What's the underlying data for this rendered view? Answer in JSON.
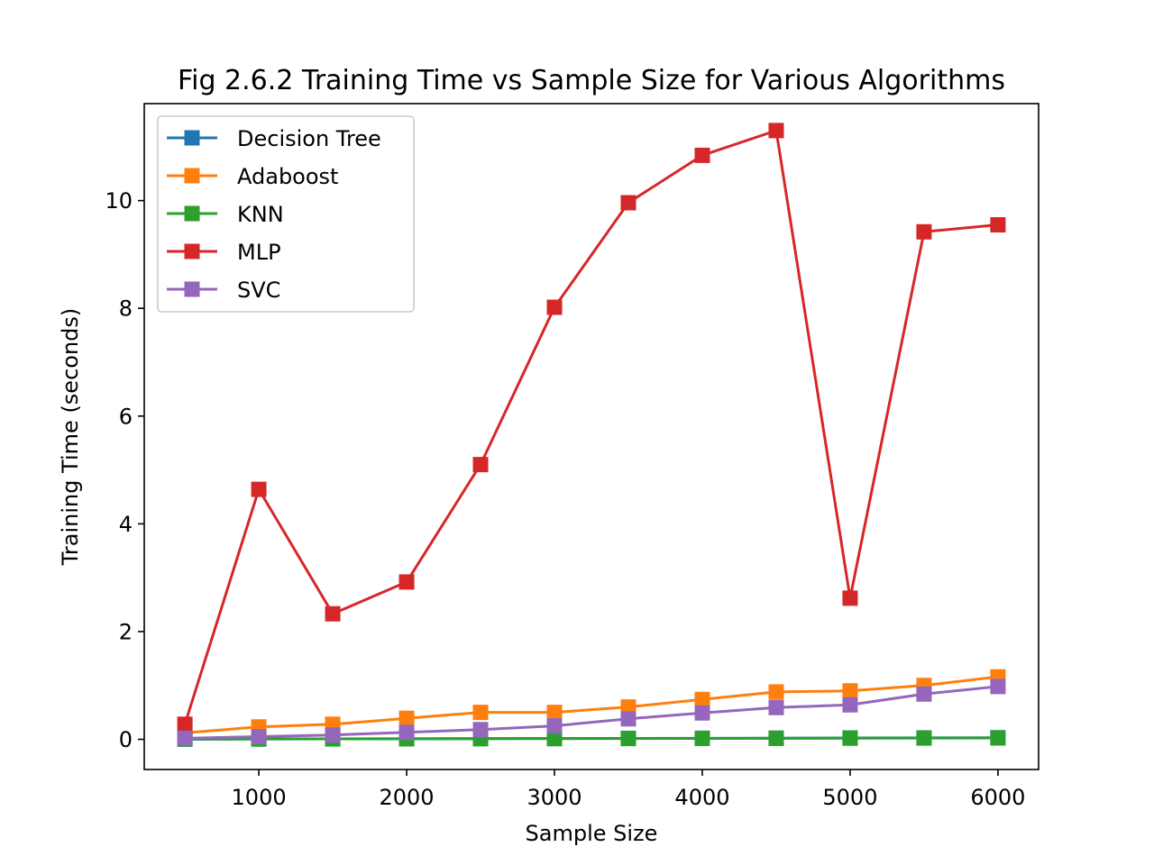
{
  "chart_data": {
    "type": "line",
    "title": "Fig 2.6.2 Training Time vs Sample Size for Various Algorithms",
    "xlabel": "Sample Size",
    "ylabel": "Training Time (seconds)",
    "x": [
      500,
      1000,
      1500,
      2000,
      2500,
      3000,
      3500,
      4000,
      4500,
      5000,
      5500,
      6000
    ],
    "xlim": [
      225,
      6275
    ],
    "ylim": [
      -0.56,
      11.8
    ],
    "xticks": [
      1000,
      2000,
      3000,
      4000,
      5000,
      6000
    ],
    "yticks": [
      0,
      2,
      4,
      6,
      8,
      10
    ],
    "grid": false,
    "legend_position": "top-left",
    "series": [
      {
        "name": "Decision Tree",
        "color": "#1f77b4",
        "marker": "square",
        "values": [
          0.003,
          0.006,
          0.008,
          0.011,
          0.013,
          0.016,
          0.018,
          0.02,
          0.022,
          0.025,
          0.027,
          0.03
        ]
      },
      {
        "name": "Adaboost",
        "color": "#ff7f0e",
        "marker": "square",
        "values": [
          0.12,
          0.23,
          0.28,
          0.39,
          0.5,
          0.5,
          0.6,
          0.74,
          0.88,
          0.9,
          1.0,
          1.16
        ]
      },
      {
        "name": "KNN",
        "color": "#2ca02c",
        "marker": "square",
        "values": [
          0.004,
          0.006,
          0.008,
          0.01,
          0.012,
          0.013,
          0.015,
          0.017,
          0.019,
          0.021,
          0.023,
          0.025
        ]
      },
      {
        "name": "MLP",
        "color": "#d62728",
        "marker": "square",
        "values": [
          0.28,
          4.64,
          2.33,
          2.92,
          5.1,
          8.02,
          9.96,
          10.84,
          11.3,
          2.62,
          9.42,
          9.55
        ]
      },
      {
        "name": "SVC",
        "color": "#9467bd",
        "marker": "square",
        "values": [
          0.02,
          0.05,
          0.08,
          0.13,
          0.18,
          0.25,
          0.38,
          0.49,
          0.59,
          0.64,
          0.84,
          0.98
        ]
      }
    ]
  }
}
